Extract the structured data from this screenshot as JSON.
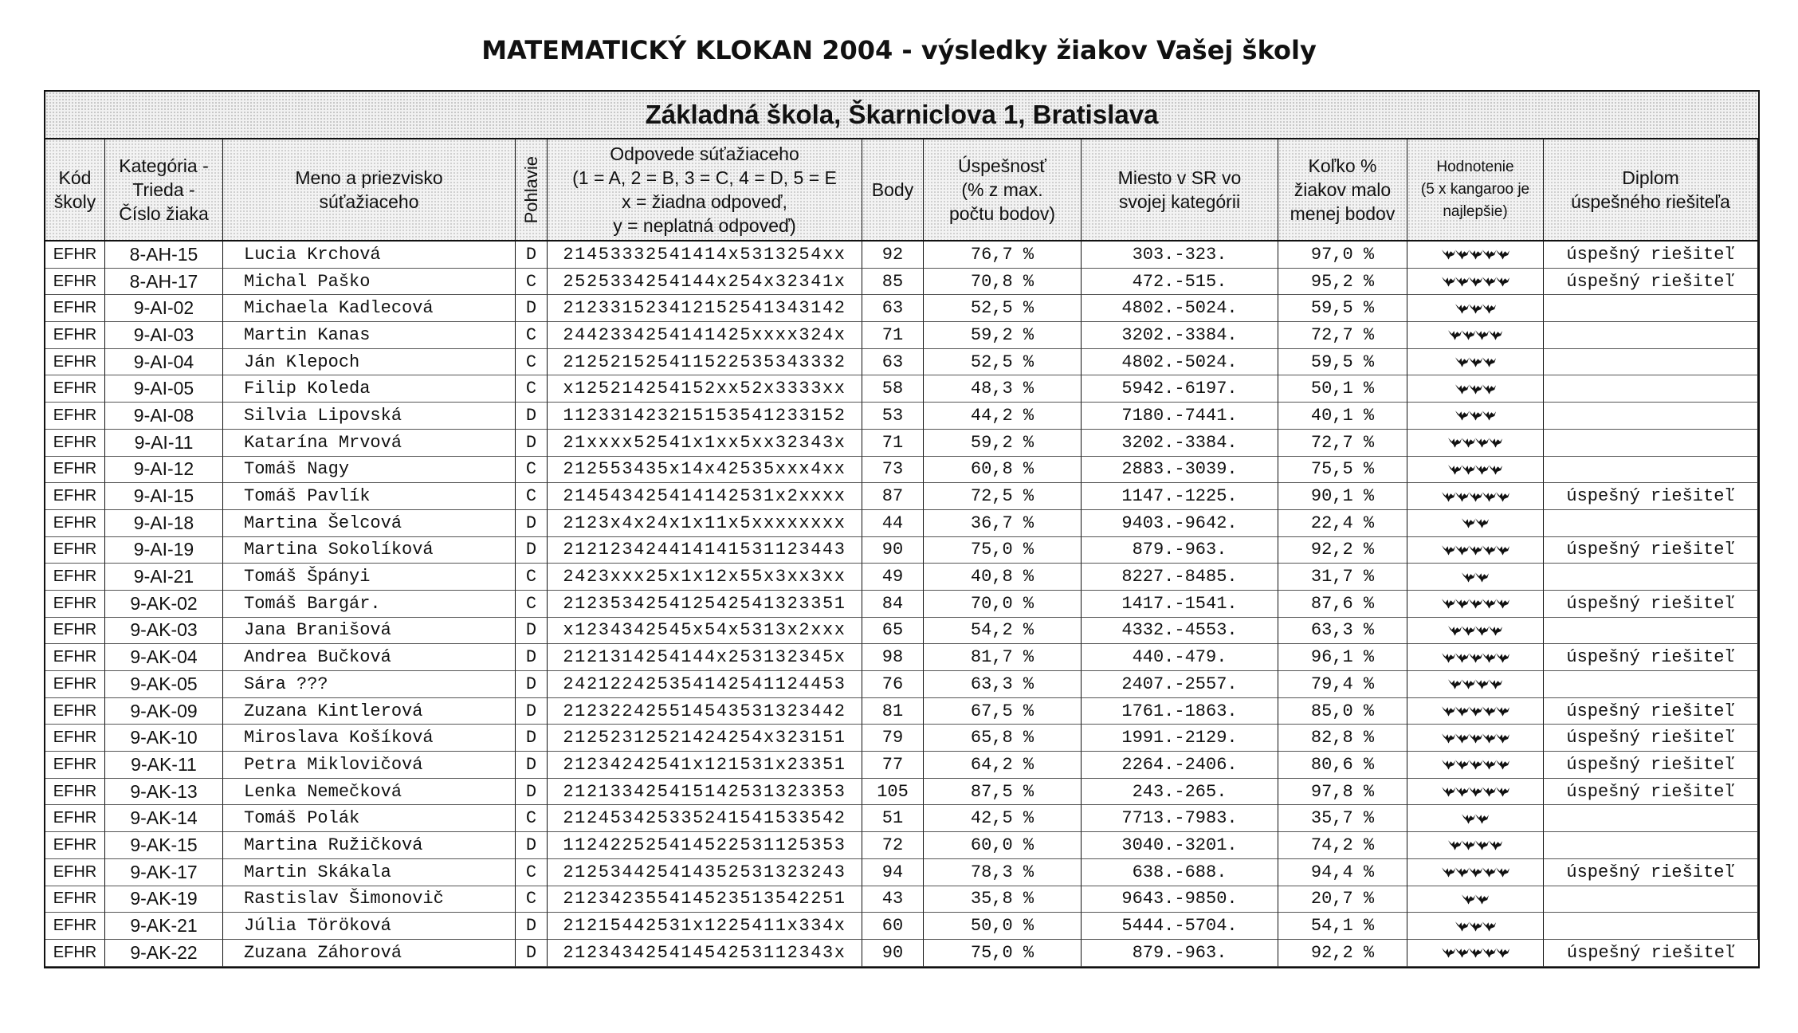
{
  "title": "MATEMATICKÝ KLOKAN 2004 - výsledky žiakov Vašej školy",
  "school": "Základná škola, Škarniclova 1, Bratislava",
  "headers": [
    "Kód\nškoly",
    "Kategória -\nTrieda -\nČíslo žiaka",
    "Meno a priezvisko\nsúťažiaceho",
    "Pohlavie",
    "Odpovede súťažiaceho\n(1 = A, 2 = B, 3 = C, 4 = D, 5 = E\nx = žiadna odpoveď,\ny = neplatná odpoveď)",
    "Body",
    "Úspešnosť\n(% z max.\npočtu bodov)",
    "Miesto v SR vo\nsvojej kategórii",
    "Koľko %\nžiakov malo\nmenej bodov",
    "Hodnotenie\n(5 x kangaroo je\nnajlepšie)",
    "Diplom\núspešného riešiteľa"
  ],
  "rating_icon": "kangaroo-icon",
  "rows": [
    {
      "kod": "EFHR",
      "kat": "8-AH-15",
      "meno": "Lucia Krchová",
      "pohlavie": "D",
      "odpovede": "21453332541414x5313254xx",
      "body": "92",
      "uspesnost": "76,7 %",
      "miesto": "303.-323.",
      "kolko": "97,0 %",
      "hodnotenie": 5,
      "diplom": "úspešný riešiteľ"
    },
    {
      "kod": "EFHR",
      "kat": "8-AH-17",
      "meno": "Michal Paško",
      "pohlavie": "C",
      "odpovede": "2525334254144x254x32341x",
      "body": "85",
      "uspesnost": "70,8 %",
      "miesto": "472.-515.",
      "kolko": "95,2 %",
      "hodnotenie": 5,
      "diplom": "úspešný riešiteľ"
    },
    {
      "kod": "EFHR",
      "kat": "9-AI-02",
      "meno": "Michaela Kadlecová",
      "pohlavie": "D",
      "odpovede": "2123315234121525413431 42",
      "body": "63",
      "uspesnost": "52,5 %",
      "miesto": "4802.-5024.",
      "kolko": "59,5 %",
      "hodnotenie": 3,
      "diplom": ""
    },
    {
      "kod": "EFHR",
      "kat": "9-AI-03",
      "meno": "Martin Kanas",
      "pohlavie": "C",
      "odpovede": "2442334254141425xxxx324x",
      "body": "71",
      "uspesnost": "59,2 %",
      "miesto": "3202.-3384.",
      "kolko": "72,7 %",
      "hodnotenie": 4,
      "diplom": ""
    },
    {
      "kod": "EFHR",
      "kat": "9-AI-04",
      "meno": "Ján Klepoch",
      "pohlavie": "C",
      "odpovede": "2125215254115225353433 32",
      "body": "63",
      "uspesnost": "52,5 %",
      "miesto": "4802.-5024.",
      "kolko": "59,5 %",
      "hodnotenie": 3,
      "diplom": ""
    },
    {
      "kod": "EFHR",
      "kat": "9-AI-05",
      "meno": "Filip Koleda",
      "pohlavie": "C",
      "odpovede": "x125214254152xx52x3333xx",
      "body": "58",
      "uspesnost": "48,3 %",
      "miesto": "5942.-6197.",
      "kolko": "50,1 %",
      "hodnotenie": 3,
      "diplom": ""
    },
    {
      "kod": "EFHR",
      "kat": "9-AI-08",
      "meno": "Silvia Lipovská",
      "pohlavie": "D",
      "odpovede": "1123314232151535412331 52",
      "body": "53",
      "uspesnost": "44,2 %",
      "miesto": "7180.-7441.",
      "kolko": "40,1 %",
      "hodnotenie": 3,
      "diplom": ""
    },
    {
      "kod": "EFHR",
      "kat": "9-AI-11",
      "meno": "Katarína Mrvová",
      "pohlavie": "D",
      "odpovede": "21xxxx52541x1xx5xx32343x",
      "body": "71",
      "uspesnost": "59,2 %",
      "miesto": "3202.-3384.",
      "kolko": "72,7 %",
      "hodnotenie": 4,
      "diplom": ""
    },
    {
      "kod": "EFHR",
      "kat": "9-AI-12",
      "meno": "Tomáš Nagy",
      "pohlavie": "C",
      "odpovede": "212553435x14x42535xxx4xx",
      "body": "73",
      "uspesnost": "60,8 %",
      "miesto": "2883.-3039.",
      "kolko": "75,5 %",
      "hodnotenie": 4,
      "diplom": ""
    },
    {
      "kod": "EFHR",
      "kat": "9-AI-15",
      "meno": "Tomáš Pavlík",
      "pohlavie": "C",
      "odpovede": "21454342541414253 1x2xxxx",
      "body": "87",
      "uspesnost": "72,5 %",
      "miesto": "1147.-1225.",
      "kolko": "90,1 %",
      "hodnotenie": 5,
      "diplom": "úspešný riešiteľ"
    },
    {
      "kod": "EFHR",
      "kat": "9-AI-18",
      "meno": "Martina Šelcová",
      "pohlavie": "D",
      "odpovede": "2123x4x24x1x11x5xxxxxxxx",
      "body": "44",
      "uspesnost": "36,7 %",
      "miesto": "9403.-9642.",
      "kolko": "22,4 %",
      "hodnotenie": 2,
      "diplom": ""
    },
    {
      "kod": "EFHR",
      "kat": "9-AI-19",
      "meno": "Martina Sokolíková",
      "pohlavie": "D",
      "odpovede": "2121234244141415311234 43",
      "body": "90",
      "uspesnost": "75,0 %",
      "miesto": "879.-963.",
      "kolko": "92,2 %",
      "hodnotenie": 5,
      "diplom": "úspešný riešiteľ"
    },
    {
      "kod": "EFHR",
      "kat": "9-AI-21",
      "meno": "Tomáš Špányi",
      "pohlavie": "C",
      "odpovede": "2423xxx25x1x12x55x3xx3xx",
      "body": "49",
      "uspesnost": "40,8 %",
      "miesto": "8227.-8485.",
      "kolko": "31,7 %",
      "hodnotenie": 2,
      "diplom": ""
    },
    {
      "kod": "EFHR",
      "kat": "9-AK-02",
      "meno": "Tomáš Bargár.",
      "pohlavie": "C",
      "odpovede": "2123534254125425413233 51",
      "body": "84",
      "uspesnost": "70,0 %",
      "miesto": "1417.-1541.",
      "kolko": "87,6 %",
      "hodnotenie": 5,
      "diplom": "úspešný riešiteľ"
    },
    {
      "kod": "EFHR",
      "kat": "9-AK-03",
      "meno": "Jana Branišová",
      "pohlavie": "D",
      "odpovede": "x1234342545x54x5313x2xxx",
      "body": "65",
      "uspesnost": "54,2 %",
      "miesto": "4332.-4553.",
      "kolko": "63,3 %",
      "hodnotenie": 4,
      "diplom": ""
    },
    {
      "kod": "EFHR",
      "kat": "9-AK-04",
      "meno": "Andrea Bučková",
      "pohlavie": "D",
      "odpovede": "2121314254144x253132345x",
      "body": "98",
      "uspesnost": "81,7 %",
      "miesto": "440.-479.",
      "kolko": "96,1 %",
      "hodnotenie": 5,
      "diplom": "úspešný riešiteľ"
    },
    {
      "kod": "EFHR",
      "kat": "9-AK-05",
      "meno": "Sára ???",
      "pohlavie": "D",
      "odpovede": "2421224253541425411244 53",
      "body": "76",
      "uspesnost": "63,3 %",
      "miesto": "2407.-2557.",
      "kolko": "79,4 %",
      "hodnotenie": 4,
      "diplom": ""
    },
    {
      "kod": "EFHR",
      "kat": "9-AK-09",
      "meno": "Zuzana Kintlerová",
      "pohlavie": "D",
      "odpovede": "2123224255145435313234 42",
      "body": "81",
      "uspesnost": "67,5 %",
      "miesto": "1761.-1863.",
      "kolko": "85,0 %",
      "hodnotenie": 5,
      "diplom": "úspešný riešiteľ"
    },
    {
      "kod": "EFHR",
      "kat": "9-AK-10",
      "meno": "Miroslava Košíková",
      "pohlavie": "D",
      "odpovede": "21252312521424254x323151",
      "body": "79",
      "uspesnost": "65,8 %",
      "miesto": "1991.-2129.",
      "kolko": "82,8 %",
      "hodnotenie": 5,
      "diplom": "úspešný riešiteľ"
    },
    {
      "kod": "EFHR",
      "kat": "9-AK-11",
      "meno": "Petra Miklovičová",
      "pohlavie": "D",
      "odpovede": "21234242541x121531x23351",
      "body": "77",
      "uspesnost": "64,2 %",
      "miesto": "2264.-2406.",
      "kolko": "80,6 %",
      "hodnotenie": 5,
      "diplom": "úspešný riešiteľ"
    },
    {
      "kod": "EFHR",
      "kat": "9-AK-13",
      "meno": "Lenka Nemečková",
      "pohlavie": "D",
      "odpovede": "2121334254151425313233 53",
      "body": "105",
      "uspesnost": "87,5 %",
      "miesto": "243.-265.",
      "kolko": "97,8 %",
      "hodnotenie": 5,
      "diplom": "úspešný riešiteľ"
    },
    {
      "kod": "EFHR",
      "kat": "9-AK-14",
      "meno": "Tomáš Polák",
      "pohlavie": "C",
      "odpovede": "2124534253352415415335 42",
      "body": "51",
      "uspesnost": "42,5 %",
      "miesto": "7713.-7983.",
      "kolko": "35,7 %",
      "hodnotenie": 2,
      "diplom": ""
    },
    {
      "kod": "EFHR",
      "kat": "9-AK-15",
      "meno": "Martina Ružičková",
      "pohlavie": "D",
      "odpovede": "1124225254145225311253 53",
      "body": "72",
      "uspesnost": "60,0 %",
      "miesto": "3040.-3201.",
      "kolko": "74,2 %",
      "hodnotenie": 4,
      "diplom": ""
    },
    {
      "kod": "EFHR",
      "kat": "9-AK-17",
      "meno": "Martin Skákala",
      "pohlavie": "C",
      "odpovede": "2125344254143525313232 43",
      "body": "94",
      "uspesnost": "78,3 %",
      "miesto": "638.-688.",
      "kolko": "94,4 %",
      "hodnotenie": 5,
      "diplom": "úspešný riešiteľ"
    },
    {
      "kod": "EFHR",
      "kat": "9-AK-19",
      "meno": "Rastislav Šimonovič",
      "pohlavie": "C",
      "odpovede": "2123423554145235135422 51",
      "body": "43",
      "uspesnost": "35,8 %",
      "miesto": "9643.-9850.",
      "kolko": "20,7 %",
      "hodnotenie": 2,
      "diplom": ""
    },
    {
      "kod": "EFHR",
      "kat": "9-AK-21",
      "meno": "Júlia Töröková",
      "pohlavie": "D",
      "odpovede": "21215442531x1225411x334x",
      "body": "60",
      "uspesnost": "50,0 %",
      "miesto": "5444.-5704.",
      "kolko": "54,1 %",
      "hodnotenie": 3,
      "diplom": ""
    },
    {
      "kod": "EFHR",
      "kat": "9-AK-22",
      "meno": "Zuzana Záhorová",
      "pohlavie": "D",
      "odpovede": "21234342541454253112343x",
      "body": "90",
      "uspesnost": "75,0 %",
      "miesto": "879.-963.",
      "kolko": "92,2 %",
      "hodnotenie": 5,
      "diplom": "úspešný riešiteľ"
    }
  ]
}
